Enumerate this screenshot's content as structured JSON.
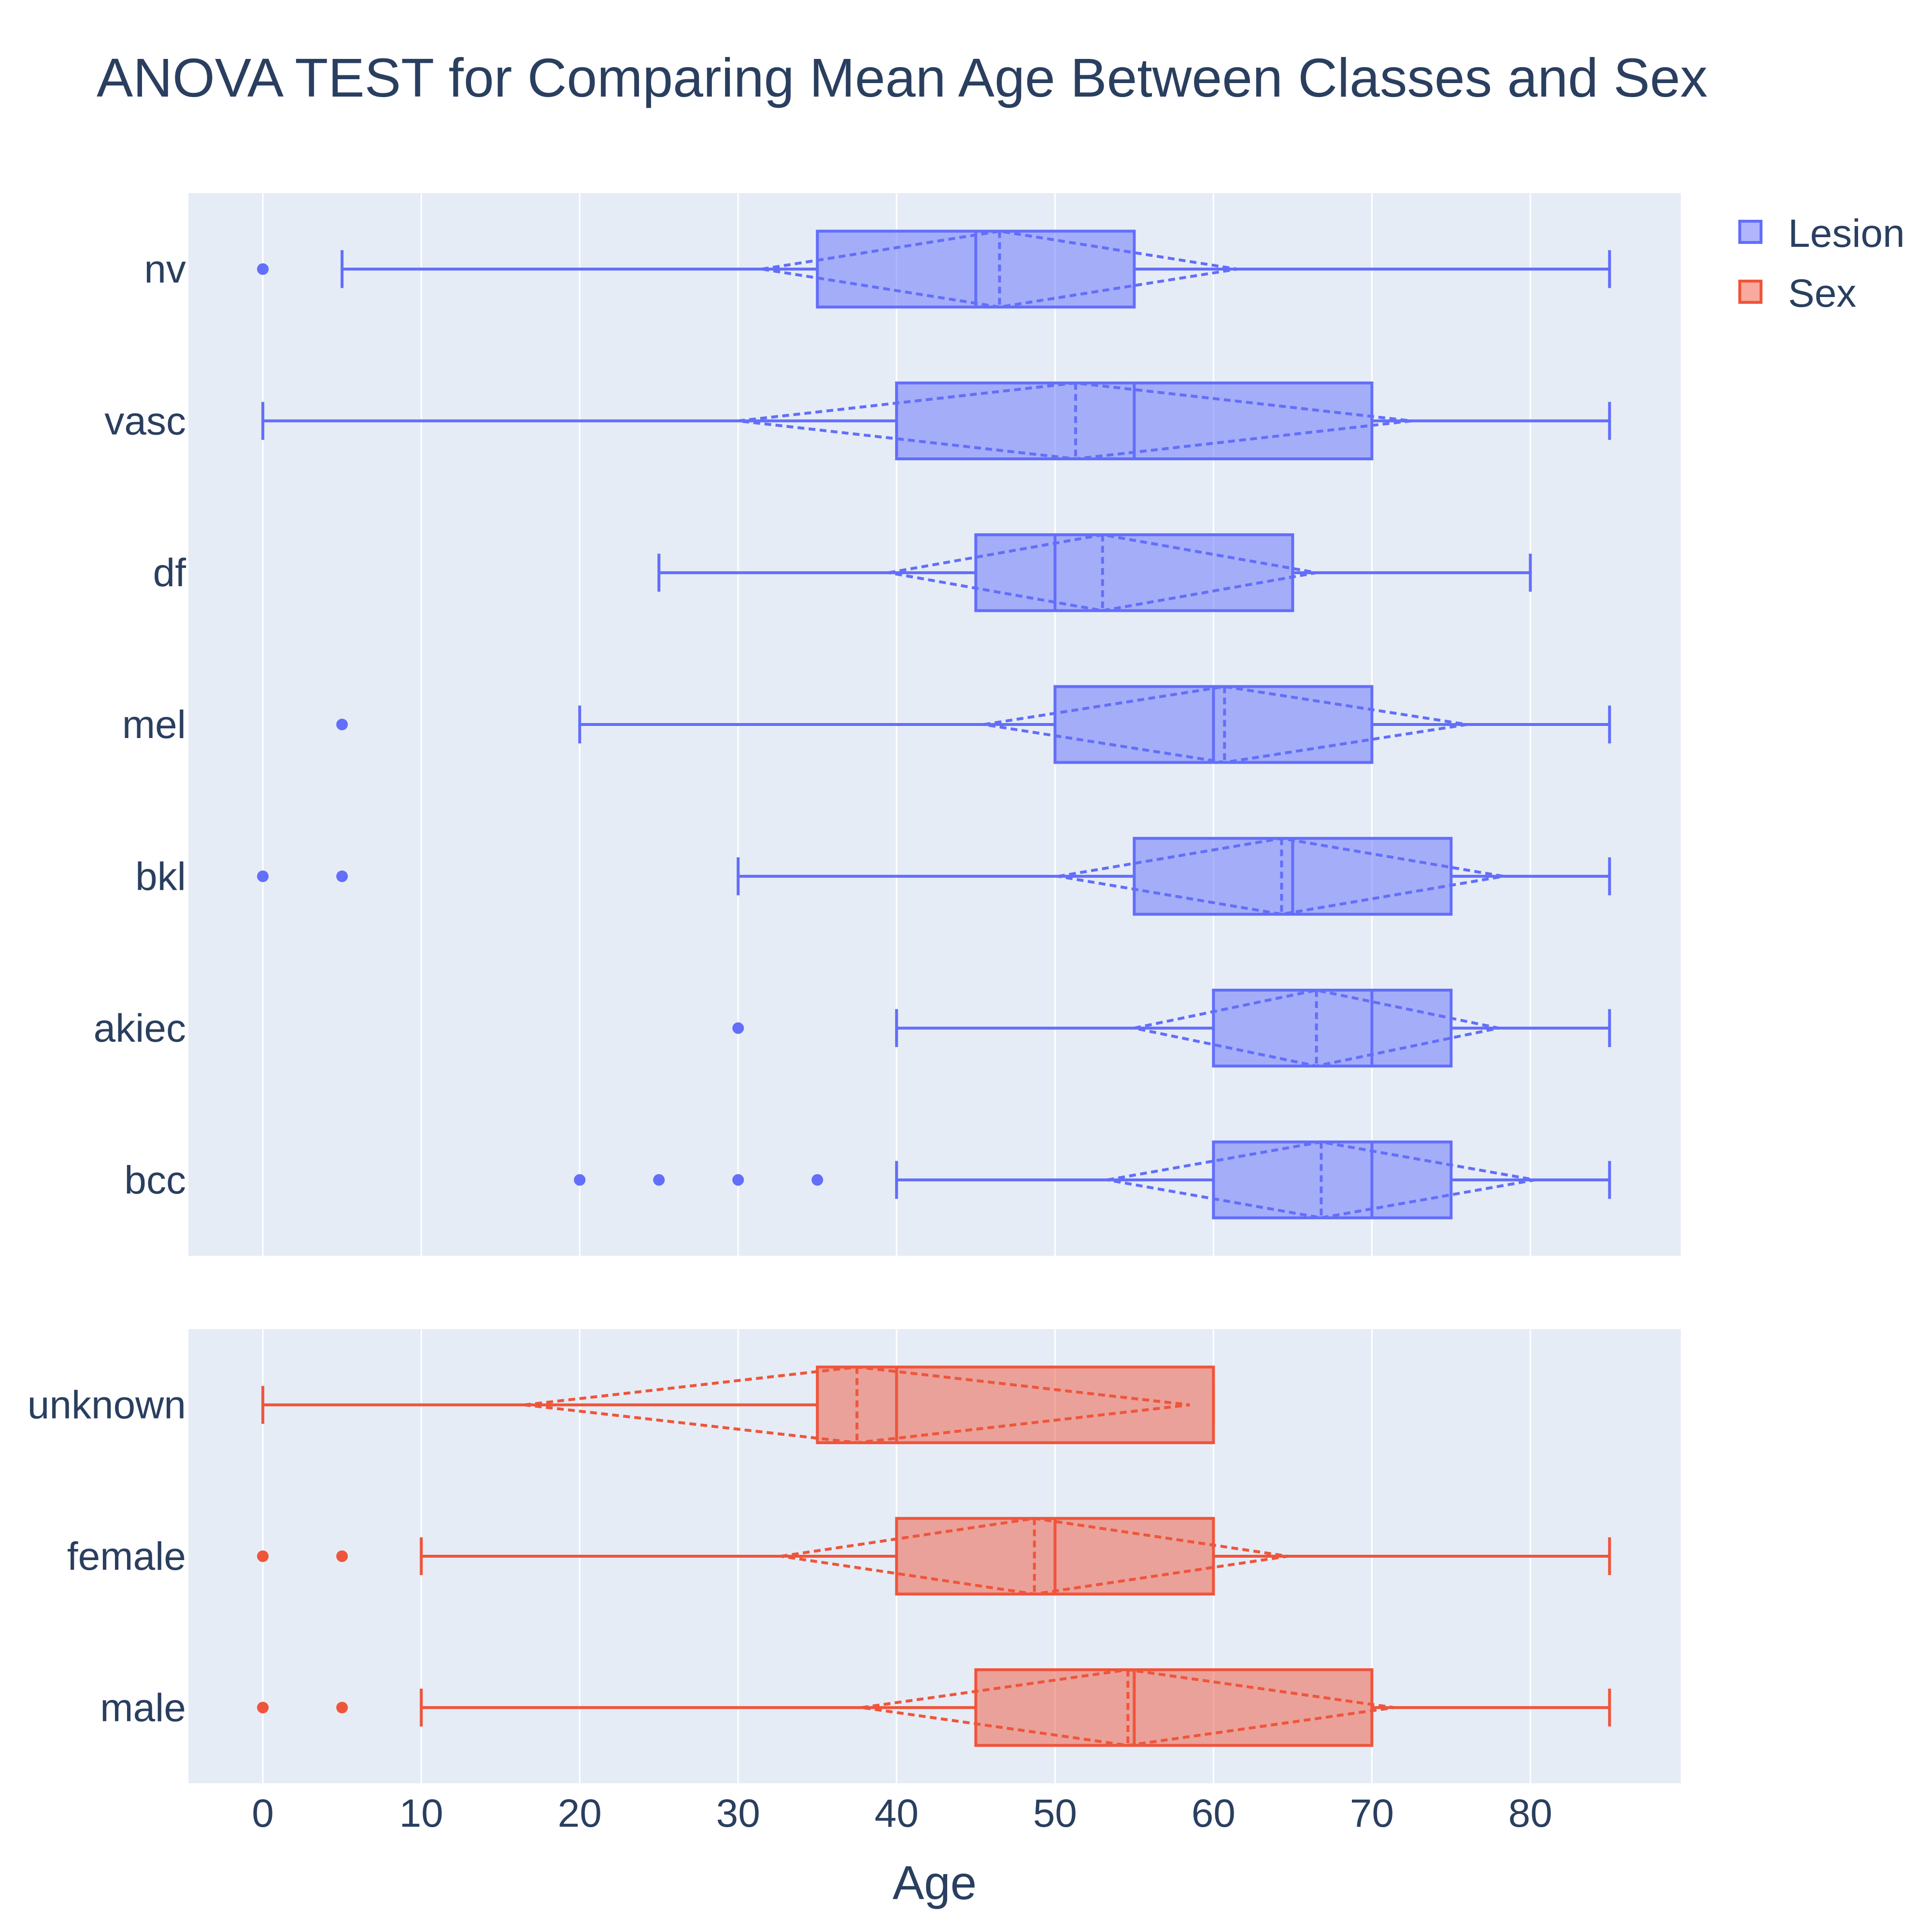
{
  "chart_data": {
    "type": "box",
    "title": "ANOVA TEST for Comparing Mean Age Between Classes and Sex",
    "xlabel": "Age",
    "xlim": [
      -4.7,
      89.5
    ],
    "xticks": [
      0,
      10,
      20,
      30,
      40,
      50,
      60,
      70,
      80
    ],
    "grid": true,
    "legend_position": "top-right",
    "colors": {
      "Lesion": "#636efa",
      "Sex": "#ef553b",
      "plot_bg": "#e5ecf6",
      "text": "#2a3f5f"
    },
    "panels": [
      {
        "series": "Lesion",
        "categories": [
          {
            "label": "nv",
            "whisker_low": 5,
            "q1": 35,
            "median": 45,
            "q3": 55,
            "whisker_high": 85,
            "mean": 46.5,
            "sd_low": 31.5,
            "sd_high": 61.5,
            "outliers": [
              0
            ]
          },
          {
            "label": "vasc",
            "whisker_low": 0,
            "q1": 40,
            "median": 55,
            "q3": 70,
            "whisker_high": 85,
            "mean": 51.3,
            "sd_low": 30.0,
            "sd_high": 72.5,
            "outliers": []
          },
          {
            "label": "df",
            "whisker_low": 25,
            "q1": 45,
            "median": 50,
            "q3": 65,
            "whisker_high": 80,
            "mean": 53.0,
            "sd_low": 39.5,
            "sd_high": 66.5,
            "outliers": []
          },
          {
            "label": "mel",
            "whisker_low": 20,
            "q1": 50,
            "median": 60,
            "q3": 70,
            "whisker_high": 85,
            "mean": 60.7,
            "sd_low": 45.5,
            "sd_high": 76.0,
            "outliers": [
              5
            ]
          },
          {
            "label": "bkl",
            "whisker_low": 30,
            "q1": 55,
            "median": 65,
            "q3": 75,
            "whisker_high": 85,
            "mean": 64.3,
            "sd_low": 50.2,
            "sd_high": 78.3,
            "outliers": [
              0,
              5
            ]
          },
          {
            "label": "akiec",
            "whisker_low": 40,
            "q1": 60,
            "median": 70,
            "q3": 75,
            "whisker_high": 85,
            "mean": 66.5,
            "sd_low": 55.0,
            "sd_high": 78.0,
            "outliers": [
              30
            ]
          },
          {
            "label": "bcc",
            "whisker_low": 40,
            "q1": 60,
            "median": 70,
            "q3": 75,
            "whisker_high": 85,
            "mean": 66.8,
            "sd_low": 53.3,
            "sd_high": 80.3,
            "outliers": [
              20,
              25,
              30,
              35
            ]
          }
        ]
      },
      {
        "series": "Sex",
        "categories": [
          {
            "label": "unknown",
            "whisker_low": 0,
            "q1": 35,
            "median": 40,
            "q3": 60,
            "whisker_high": 60,
            "mean": 37.5,
            "sd_low": 16.5,
            "sd_high": 58.5,
            "outliers": []
          },
          {
            "label": "female",
            "whisker_low": 10,
            "q1": 40,
            "median": 50,
            "q3": 60,
            "whisker_high": 85,
            "mean": 48.7,
            "sd_low": 32.7,
            "sd_high": 64.7,
            "outliers": [
              0,
              5
            ]
          },
          {
            "label": "male",
            "whisker_low": 10,
            "q1": 45,
            "median": 55,
            "q3": 70,
            "whisker_high": 85,
            "mean": 54.6,
            "sd_low": 37.8,
            "sd_high": 71.4,
            "outliers": [
              0,
              5
            ]
          }
        ]
      }
    ],
    "legend": [
      {
        "name": "Lesion"
      },
      {
        "name": "Sex"
      }
    ]
  }
}
